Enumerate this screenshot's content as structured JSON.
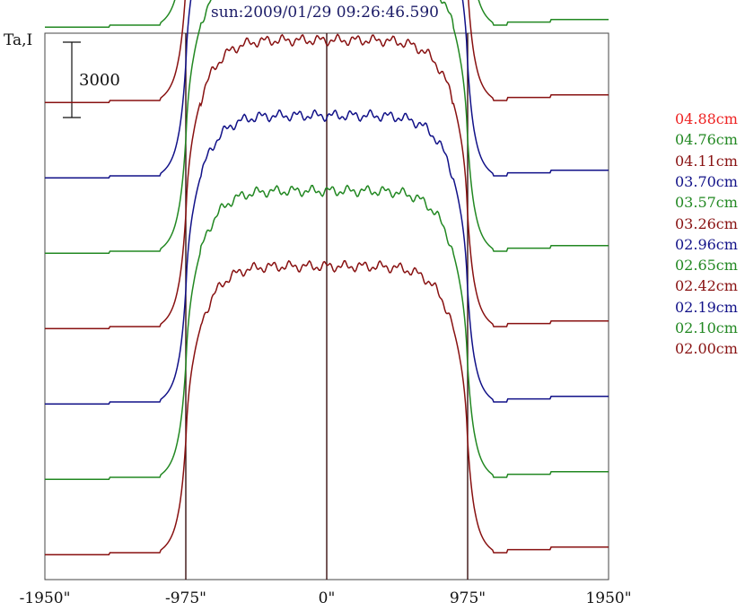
{
  "chart_data": {
    "type": "line",
    "title": "sun:2009/01/29 09:26:46.590",
    "ylabel": "Ta,I",
    "scale_bar_label": "3000",
    "scale_bar_value": 3000,
    "xlim": [
      -1950,
      1950
    ],
    "x_ticks": [
      -1950,
      -975,
      0,
      975,
      1950
    ],
    "x_tick_labels": [
      "-1950\"",
      "-975\"",
      "0\"",
      "975\"",
      "1950\""
    ],
    "vertical_lines": [
      -975,
      0,
      975
    ],
    "limb": 975,
    "plateau_height": 11400,
    "series": [
      {
        "name": "04.88cm",
        "color": "#ee2222",
        "offset": 33000
      },
      {
        "name": "04.76cm",
        "color": "#228822",
        "offset": 30000
      },
      {
        "name": "04.11cm",
        "color": "#881111",
        "offset": 27000
      },
      {
        "name": "03.70cm",
        "color": "#111188",
        "offset": 24000
      },
      {
        "name": "03.57cm",
        "color": "#228822",
        "offset": 21000
      },
      {
        "name": "03.26cm",
        "color": "#881111",
        "offset": 18000
      },
      {
        "name": "02.96cm",
        "color": "#111188",
        "offset": 15000
      },
      {
        "name": "02.65cm",
        "color": "#228822",
        "offset": 12000
      },
      {
        "name": "02.42cm",
        "color": "#881111",
        "offset": 9000
      },
      {
        "name": "02.19cm",
        "color": "#111188",
        "offset": 6000
      },
      {
        "name": "02.10cm",
        "color": "#228822",
        "offset": 3000
      },
      {
        "name": "02.00cm",
        "color": "#881111",
        "offset": 0
      }
    ]
  }
}
